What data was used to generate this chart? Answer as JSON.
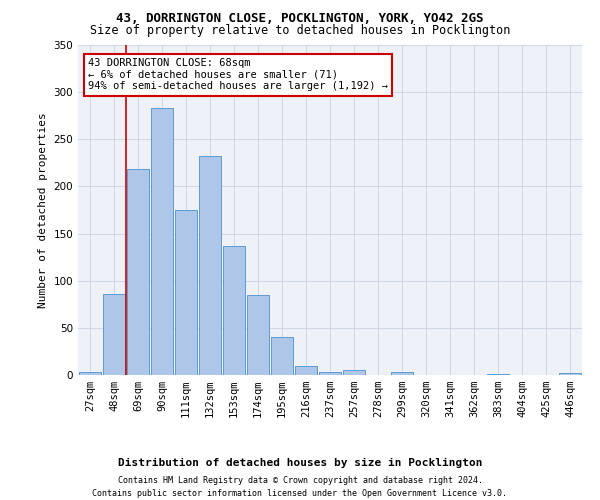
{
  "title": "43, DORRINGTON CLOSE, POCKLINGTON, YORK, YO42 2GS",
  "subtitle": "Size of property relative to detached houses in Pocklington",
  "xlabel": "Distribution of detached houses by size in Pocklington",
  "ylabel": "Number of detached properties",
  "footnote1": "Contains HM Land Registry data © Crown copyright and database right 2024.",
  "footnote2": "Contains public sector information licensed under the Open Government Licence v3.0.",
  "bar_labels": [
    "27sqm",
    "48sqm",
    "69sqm",
    "90sqm",
    "111sqm",
    "132sqm",
    "153sqm",
    "174sqm",
    "195sqm",
    "216sqm",
    "237sqm",
    "257sqm",
    "278sqm",
    "299sqm",
    "320sqm",
    "341sqm",
    "362sqm",
    "383sqm",
    "404sqm",
    "425sqm",
    "446sqm"
  ],
  "bar_values": [
    3,
    86,
    218,
    283,
    175,
    232,
    137,
    85,
    40,
    10,
    3,
    5,
    0,
    3,
    0,
    0,
    0,
    1,
    0,
    0,
    2
  ],
  "bar_color": "#aec6e8",
  "bar_edge_color": "#5b9bd5",
  "grid_color": "#d0d8e8",
  "background_color": "#eef2f8",
  "annotation_line1": "43 DORRINGTON CLOSE: 68sqm",
  "annotation_line2": "← 6% of detached houses are smaller (71)",
  "annotation_line3": "94% of semi-detached houses are larger (1,192) →",
  "annotation_box_color": "#ffffff",
  "annotation_box_edge_color": "#cc0000",
  "red_line_x": 1.5,
  "ylim": [
    0,
    350
  ],
  "yticks": [
    0,
    50,
    100,
    150,
    200,
    250,
    300,
    350
  ],
  "title_fontsize": 9,
  "subtitle_fontsize": 8.5,
  "xlabel_fontsize": 8,
  "ylabel_fontsize": 8,
  "tick_fontsize": 7.5,
  "footnote_fontsize": 6,
  "annot_fontsize": 7.5
}
